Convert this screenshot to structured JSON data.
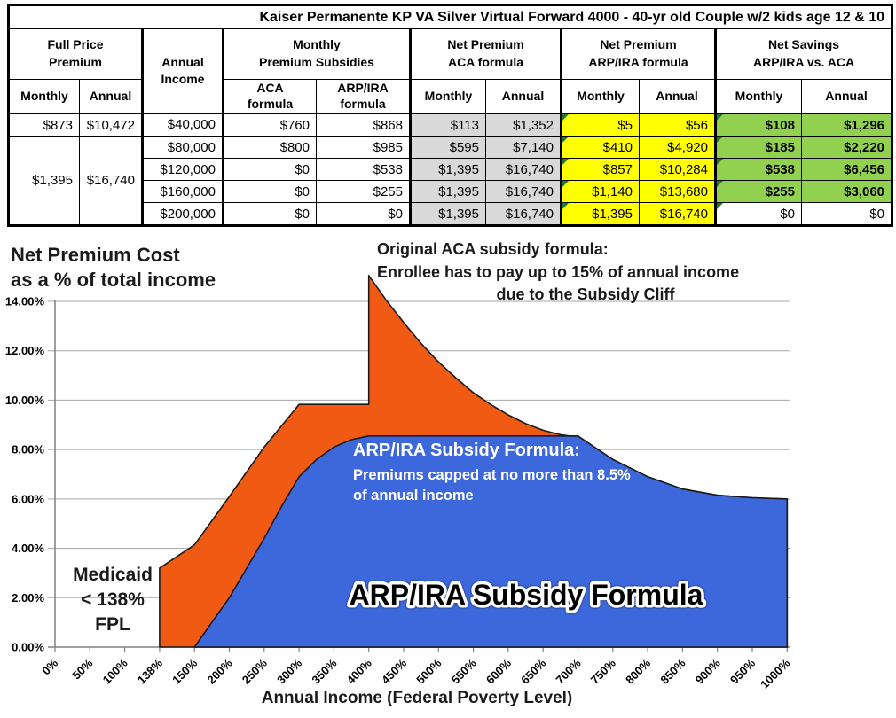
{
  "colors": {
    "orange": "#F15A13",
    "blue": "#3D68DC",
    "cell_gray": "#D9D9D9",
    "cell_yellow": "#FFFF00",
    "cell_green": "#92D050",
    "tri_green": "#1E7B34",
    "grid": "#A6A6A6",
    "axis": "#808080",
    "area_outline": "#1a1a1a"
  },
  "table": {
    "title": "Kaiser Permanente KP VA Silver Virtual Forward 4000 - 40-yr old Couple w/2 kids age 12 & 10",
    "header_groups": [
      {
        "lines": [
          "Full Price",
          "Premium"
        ],
        "colspan": 2
      },
      {
        "lines": [
          "Annual",
          "Income"
        ],
        "colspan": 1,
        "rowspan": 2
      },
      {
        "lines": [
          "Monthly",
          "Premium Subsidies"
        ],
        "colspan": 2
      },
      {
        "lines": [
          "Net Premium",
          "ACA formula"
        ],
        "colspan": 2
      },
      {
        "lines": [
          "Net Premium",
          "ARP/IRA formula"
        ],
        "colspan": 2
      },
      {
        "lines": [
          "Net Savings",
          "ARP/IRA vs. ACA"
        ],
        "colspan": 2
      }
    ],
    "sub_headers": [
      [
        "Monthly"
      ],
      [
        "Annual"
      ],
      [
        "ACA",
        "formula"
      ],
      [
        "ARP/IRA",
        "formula"
      ],
      [
        "Monthly"
      ],
      [
        "Annual"
      ],
      [
        "Monthly"
      ],
      [
        "Annual"
      ],
      [
        "Monthly"
      ],
      [
        "Annual"
      ]
    ],
    "rows": [
      [
        {
          "t": "$873",
          "ctr": true
        },
        {
          "t": "$10,472",
          "ctr": true
        },
        {
          "t": "$40,000"
        },
        {
          "t": "$760"
        },
        {
          "t": "$868"
        },
        {
          "t": "$113",
          "bg": "gray"
        },
        {
          "t": "$1,352",
          "bg": "gray"
        },
        {
          "t": "$5",
          "bg": "yellow",
          "tri": true
        },
        {
          "t": "$56",
          "bg": "yellow"
        },
        {
          "t": "$108",
          "bg": "green",
          "bold": true,
          "tri": true
        },
        {
          "t": "$1,296",
          "bg": "green",
          "bold": true
        }
      ],
      [
        {
          "t": "$1,395",
          "rowspan": 4,
          "ctr": true
        },
        {
          "t": "$16,740",
          "rowspan": 4,
          "ctr": true
        },
        {
          "t": "$80,000"
        },
        {
          "t": "$800"
        },
        {
          "t": "$985"
        },
        {
          "t": "$595",
          "bg": "gray"
        },
        {
          "t": "$7,140",
          "bg": "gray"
        },
        {
          "t": "$410",
          "bg": "yellow",
          "tri": true
        },
        {
          "t": "$4,920",
          "bg": "yellow"
        },
        {
          "t": "$185",
          "bg": "green",
          "bold": true,
          "tri": true
        },
        {
          "t": "$2,220",
          "bg": "green",
          "bold": true
        }
      ],
      [
        {
          "t": "$120,000"
        },
        {
          "t": "$0"
        },
        {
          "t": "$538"
        },
        {
          "t": "$1,395",
          "bg": "gray"
        },
        {
          "t": "$16,740",
          "bg": "gray"
        },
        {
          "t": "$857",
          "bg": "yellow",
          "tri": true
        },
        {
          "t": "$10,284",
          "bg": "yellow"
        },
        {
          "t": "$538",
          "bg": "green",
          "bold": true,
          "tri": true
        },
        {
          "t": "$6,456",
          "bg": "green",
          "bold": true
        }
      ],
      [
        {
          "t": "$160,000"
        },
        {
          "t": "$0"
        },
        {
          "t": "$255"
        },
        {
          "t": "$1,395",
          "bg": "gray"
        },
        {
          "t": "$16,740",
          "bg": "gray"
        },
        {
          "t": "$1,140",
          "bg": "yellow",
          "tri": true
        },
        {
          "t": "$13,680",
          "bg": "yellow"
        },
        {
          "t": "$255",
          "bg": "green",
          "bold": true,
          "tri": true
        },
        {
          "t": "$3,060",
          "bg": "green",
          "bold": true
        }
      ],
      [
        {
          "t": "$200,000"
        },
        {
          "t": "$0"
        },
        {
          "t": "$0"
        },
        {
          "t": "$1,395",
          "bg": "gray"
        },
        {
          "t": "$16,740",
          "bg": "gray"
        },
        {
          "t": "$1,395",
          "bg": "yellow",
          "tri": true
        },
        {
          "t": "$16,740",
          "bg": "yellow"
        },
        {
          "t": "$0",
          "tri": true
        },
        {
          "t": "$0"
        }
      ]
    ]
  },
  "chart_data": {
    "type": "area",
    "title_lines": [
      "Net Premium Cost",
      "as a % of total income"
    ],
    "xlabel": "Annual Income (Federal Poverty Level)",
    "ylabel": "Net premium cost as % of total income",
    "y_ticks": [
      "0.00%",
      "2.00%",
      "4.00%",
      "6.00%",
      "8.00%",
      "10.00%",
      "12.00%",
      "14.00%"
    ],
    "ylim": [
      0,
      14
    ],
    "grid": true,
    "categories": [
      "0%",
      "50%",
      "100%",
      "138%",
      "150%",
      "200%",
      "250%",
      "300%",
      "350%",
      "400%",
      "450%",
      "500%",
      "550%",
      "600%",
      "650%",
      "700%",
      "750%",
      "800%",
      "850%",
      "900%",
      "950%",
      "1000%"
    ],
    "category_values": [
      0,
      50,
      100,
      138,
      150,
      200,
      250,
      300,
      350,
      400,
      450,
      500,
      550,
      600,
      650,
      700,
      750,
      800,
      850,
      900,
      950,
      1000
    ],
    "series": [
      {
        "name": "Original ACA subsidy formula",
        "color": "#F15A13",
        "points": [
          [
            138,
            0
          ],
          [
            138,
            3.2
          ],
          [
            150,
            4.14
          ],
          [
            200,
            6.1
          ],
          [
            250,
            8.1
          ],
          [
            300,
            9.83
          ],
          [
            400,
            9.83
          ],
          [
            400,
            15.05
          ],
          [
            425,
            14.05
          ],
          [
            450,
            13.15
          ],
          [
            475,
            12.3
          ],
          [
            500,
            11.55
          ],
          [
            525,
            10.9
          ],
          [
            550,
            10.3
          ],
          [
            575,
            9.82
          ],
          [
            600,
            9.4
          ],
          [
            625,
            9.05
          ],
          [
            650,
            8.78
          ],
          [
            675,
            8.6
          ],
          [
            700,
            8.5
          ],
          [
            750,
            7.6
          ],
          [
            800,
            6.9
          ],
          [
            850,
            6.4
          ],
          [
            900,
            6.15
          ],
          [
            950,
            6.05
          ],
          [
            1000,
            6.0
          ]
        ]
      },
      {
        "name": "ARP/IRA Subsidy Formula",
        "color": "#3D68DC",
        "points": [
          [
            150,
            0
          ],
          [
            200,
            2.0
          ],
          [
            250,
            4.4
          ],
          [
            275,
            5.7
          ],
          [
            300,
            6.9
          ],
          [
            325,
            7.6
          ],
          [
            350,
            8.1
          ],
          [
            375,
            8.4
          ],
          [
            400,
            8.55
          ],
          [
            700,
            8.55
          ],
          [
            750,
            7.6
          ],
          [
            800,
            6.9
          ],
          [
            850,
            6.4
          ],
          [
            900,
            6.15
          ],
          [
            950,
            6.05
          ],
          [
            1000,
            6.0
          ]
        ]
      }
    ],
    "annotations": {
      "aca_lines": [
        "Original ACA subsidy formula:",
        "Enrollee has to pay up to 15% of annual income",
        "due to the Subsidy Cliff"
      ],
      "medicaid_lines": [
        "Medicaid",
        "< 138%",
        "FPL"
      ],
      "arp_label_lines": [
        "ARP/IRA Subsidy Formula:",
        "Premiums capped at no more than 8.5%",
        "of annual income"
      ],
      "arp_big_label": "ARP/IRA Subsidy Formula"
    }
  }
}
